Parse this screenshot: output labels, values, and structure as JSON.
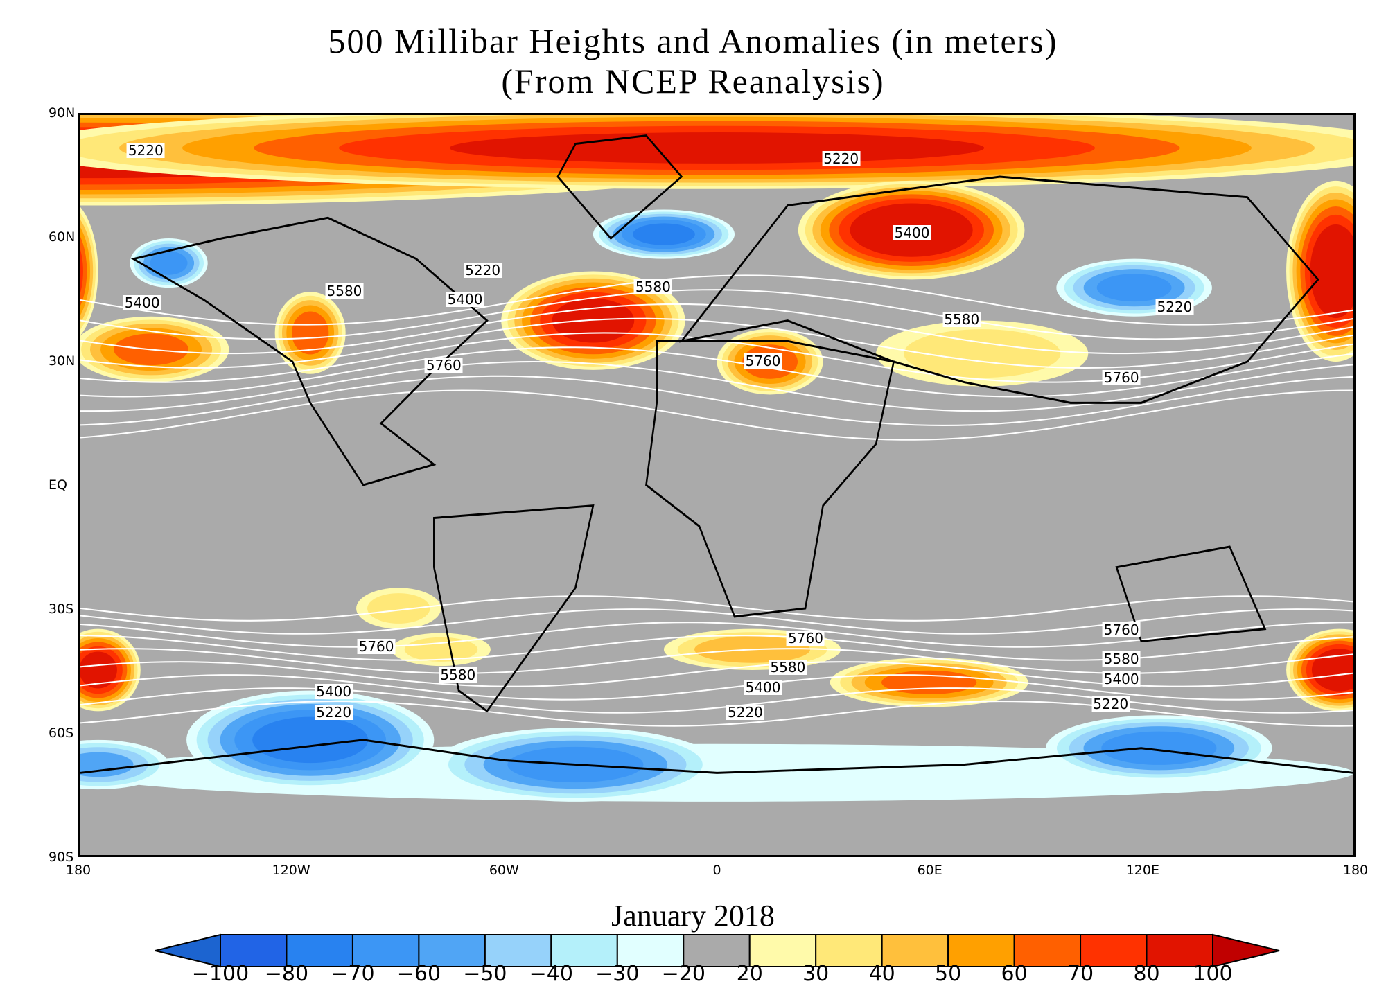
{
  "title": "500 Millibar Heights and Anomalies (in meters)",
  "subtitle": "(From NCEP Reanalysis)",
  "period": "January 2018",
  "map": {
    "lat_ticks": [
      "90N",
      "60N",
      "30N",
      "EQ",
      "30S",
      "60S",
      "90S"
    ],
    "lon_ticks": [
      "180",
      "120W",
      "60W",
      "0",
      "60E",
      "120E",
      "180"
    ],
    "contour_labels": [
      {
        "text": "5220",
        "lon": -161,
        "lat": 81
      },
      {
        "text": "5220",
        "lon": 35,
        "lat": 79
      },
      {
        "text": "5400",
        "lon": 55,
        "lat": 61
      },
      {
        "text": "5220",
        "lon": -66,
        "lat": 52
      },
      {
        "text": "5580",
        "lon": -105,
        "lat": 47
      },
      {
        "text": "5400",
        "lon": -71,
        "lat": 45
      },
      {
        "text": "5580",
        "lon": -18,
        "lat": 48
      },
      {
        "text": "5400",
        "lon": -162,
        "lat": 44
      },
      {
        "text": "5760",
        "lon": -77,
        "lat": 29
      },
      {
        "text": "5760",
        "lon": 13,
        "lat": 30
      },
      {
        "text": "5580",
        "lon": 69,
        "lat": 40
      },
      {
        "text": "5220",
        "lon": 129,
        "lat": 43
      },
      {
        "text": "5760",
        "lon": 114,
        "lat": 26
      },
      {
        "text": "5760",
        "lon": -96,
        "lat": -39
      },
      {
        "text": "5580",
        "lon": -73,
        "lat": -46
      },
      {
        "text": "5400",
        "lon": -108,
        "lat": -50
      },
      {
        "text": "5220",
        "lon": -108,
        "lat": -55
      },
      {
        "text": "5760",
        "lon": 25,
        "lat": -37
      },
      {
        "text": "5580",
        "lon": 20,
        "lat": -44
      },
      {
        "text": "5400",
        "lon": 13,
        "lat": -49
      },
      {
        "text": "5220",
        "lon": 8,
        "lat": -55
      },
      {
        "text": "5760",
        "lon": 114,
        "lat": -35
      },
      {
        "text": "5580",
        "lon": 114,
        "lat": -42
      },
      {
        "text": "5400",
        "lon": 114,
        "lat": -47
      },
      {
        "text": "5220",
        "lon": 111,
        "lat": -53
      }
    ]
  },
  "colorbar": {
    "labels": [
      "−100",
      "−80",
      "−70",
      "−60",
      "−50",
      "−40",
      "−30",
      "−20",
      "20",
      "30",
      "40",
      "50",
      "60",
      "70",
      "80",
      "100"
    ],
    "colors": [
      "#2164e6",
      "#2882f0",
      "#3c96f5",
      "#50a5f5",
      "#96d2fa",
      "#b4f0fa",
      "#e1ffff",
      "#aaaaaa",
      "#fffaaa",
      "#ffe878",
      "#ffc03c",
      "#ffa000",
      "#ff6000",
      "#ff3200",
      "#e11400"
    ],
    "low_arrow_color": "#1c64d0",
    "high_arrow_color": "#c00000"
  }
}
